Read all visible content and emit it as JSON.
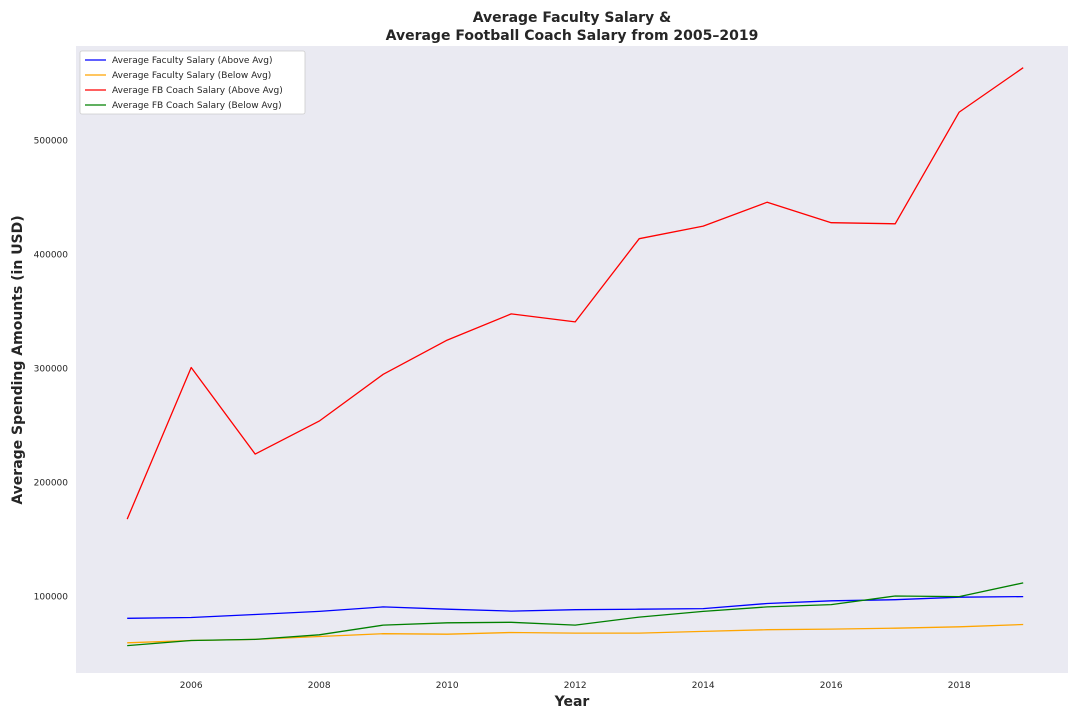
{
  "chart_data": {
    "type": "line",
    "title_lines": [
      "Average Faculty Salary &",
      "Average Football Coach Salary from 2005–2019"
    ],
    "xlabel": "Year",
    "ylabel": "Average Spending Amounts (in USD)",
    "xlim": [
      2004.2,
      2019.7
    ],
    "ylim": [
      33000,
      583000
    ],
    "xticks": [
      2006,
      2008,
      2010,
      2012,
      2014,
      2016,
      2018
    ],
    "yticks": [
      100000,
      200000,
      300000,
      400000,
      500000
    ],
    "grid": false,
    "legend": "top-left",
    "x": [
      2005,
      2006,
      2007,
      2008,
      2009,
      2010,
      2011,
      2012,
      2013,
      2014,
      2015,
      2016,
      2017,
      2018,
      2019
    ],
    "series": [
      {
        "name": "Average Faculty Salary (Above Avg)",
        "color": "#0000ff",
        "values": [
          81000,
          81700,
          84300,
          87000,
          91000,
          89000,
          87300,
          88500,
          89000,
          89500,
          94000,
          96300,
          97300,
          99500,
          100000
        ]
      },
      {
        "name": "Average Faculty Salary (Below Avg)",
        "color": "#ffa500",
        "values": [
          59500,
          61500,
          62500,
          65000,
          67500,
          67000,
          68500,
          68000,
          68000,
          69500,
          71000,
          71500,
          72300,
          73500,
          75500
        ]
      },
      {
        "name": "Average FB Coach Salary (Above Avg)",
        "color": "#ff0000",
        "values": [
          168000,
          301000,
          225000,
          254000,
          295000,
          325000,
          348000,
          341000,
          414000,
          425000,
          446000,
          428000,
          427000,
          525000,
          564000
        ]
      },
      {
        "name": "Average FB Coach Salary (Below Avg)",
        "color": "#008000",
        "values": [
          57000,
          61500,
          62500,
          66500,
          75000,
          77000,
          77500,
          75000,
          82000,
          87000,
          91000,
          93000,
          100500,
          100000,
          112000
        ]
      }
    ]
  }
}
